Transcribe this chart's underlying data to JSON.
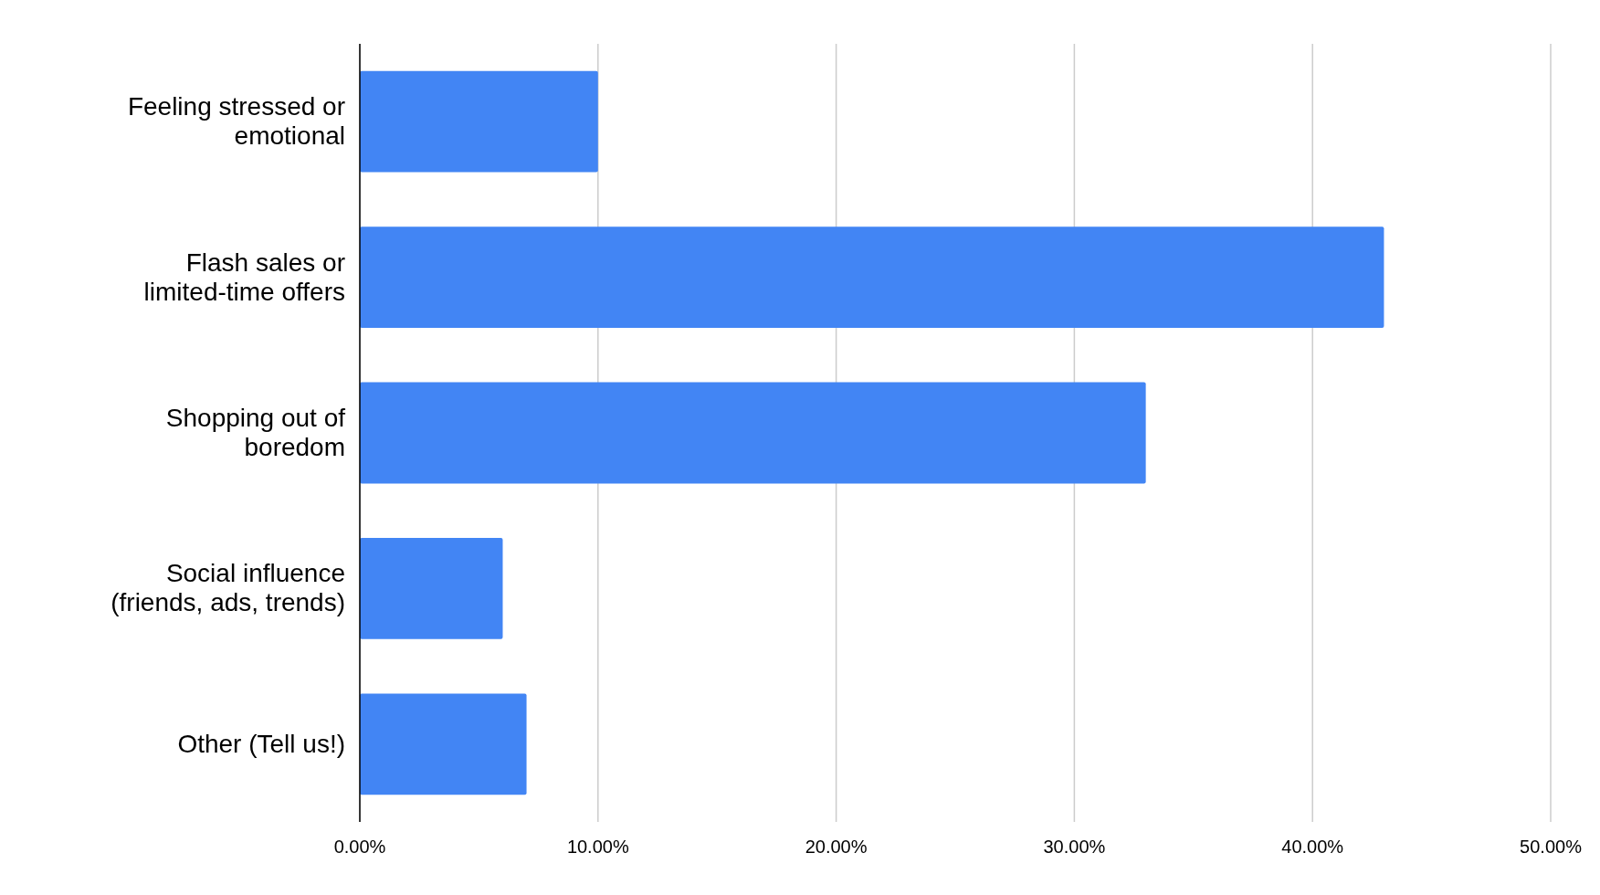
{
  "chart_data": {
    "type": "bar",
    "orientation": "horizontal",
    "categories": [
      "Feeling stressed or emotional",
      "Flash sales or limited-time offers",
      "Shopping out of boredom",
      "Social influence (friends, ads, trends)",
      "Other (Tell us!)"
    ],
    "values": [
      10,
      43,
      33,
      6,
      7
    ],
    "color": "#4285f4",
    "xlim": [
      0,
      50
    ],
    "xticks": [
      {
        "value": 0,
        "label": "0.00%"
      },
      {
        "value": 10,
        "label": "10.00%"
      },
      {
        "value": 20,
        "label": "20.00%"
      },
      {
        "value": 30,
        "label": "30.00%"
      },
      {
        "value": 40,
        "label": "40.00%"
      },
      {
        "value": 50,
        "label": "50.00%"
      }
    ],
    "grid": "x"
  }
}
